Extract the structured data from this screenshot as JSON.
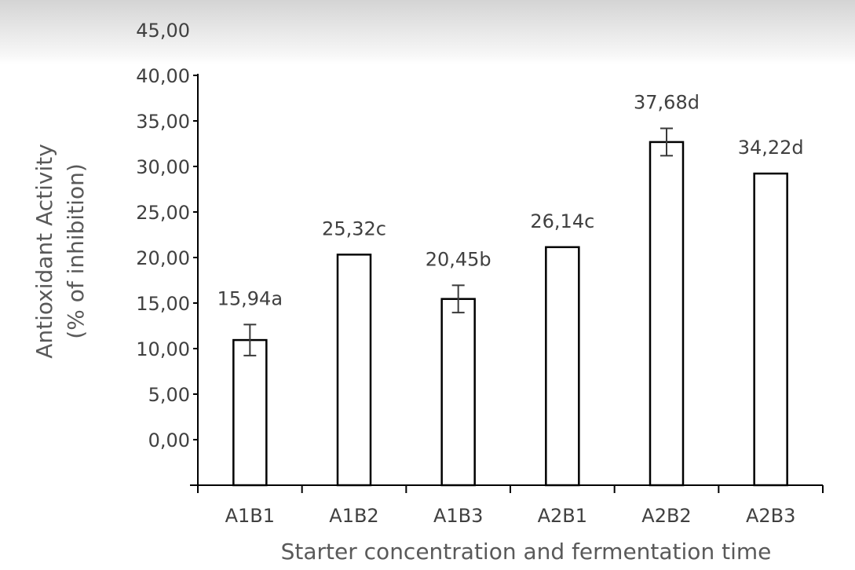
{
  "chart_data": {
    "type": "bar",
    "title": "",
    "xlabel": "Starter concentration and fermentation time",
    "ylabel_lines": [
      "Antioxidant Activity",
      "(% of inhibition)"
    ],
    "ylim": [
      0,
      45
    ],
    "y_axis_offset": -5,
    "yticks": [
      0,
      5,
      10,
      15,
      20,
      25,
      30,
      35,
      40,
      45
    ],
    "ytick_labels": [
      "0,00",
      "5,00",
      "10,00",
      "15,00",
      "20,00",
      "25,00",
      "30,00",
      "35,00",
      "40,00",
      "45,00"
    ],
    "categories": [
      "A1B1",
      "A1B2",
      "A1B3",
      "A2B1",
      "A2B2",
      "A2B3"
    ],
    "values": [
      15.94,
      25.32,
      20.45,
      26.14,
      37.68,
      34.22
    ],
    "errors": [
      1.7,
      0,
      1.5,
      0,
      1.5,
      0
    ],
    "data_labels": [
      "15,94a",
      "25,32c",
      "20,45b",
      "26,14c",
      "37,68d",
      "34,22d"
    ],
    "grid": false,
    "legend": "none",
    "colors": {
      "bar_fill": "#ffffff",
      "bar_stroke": "#000000",
      "text": "#404040",
      "axis_title": "#595959"
    }
  }
}
